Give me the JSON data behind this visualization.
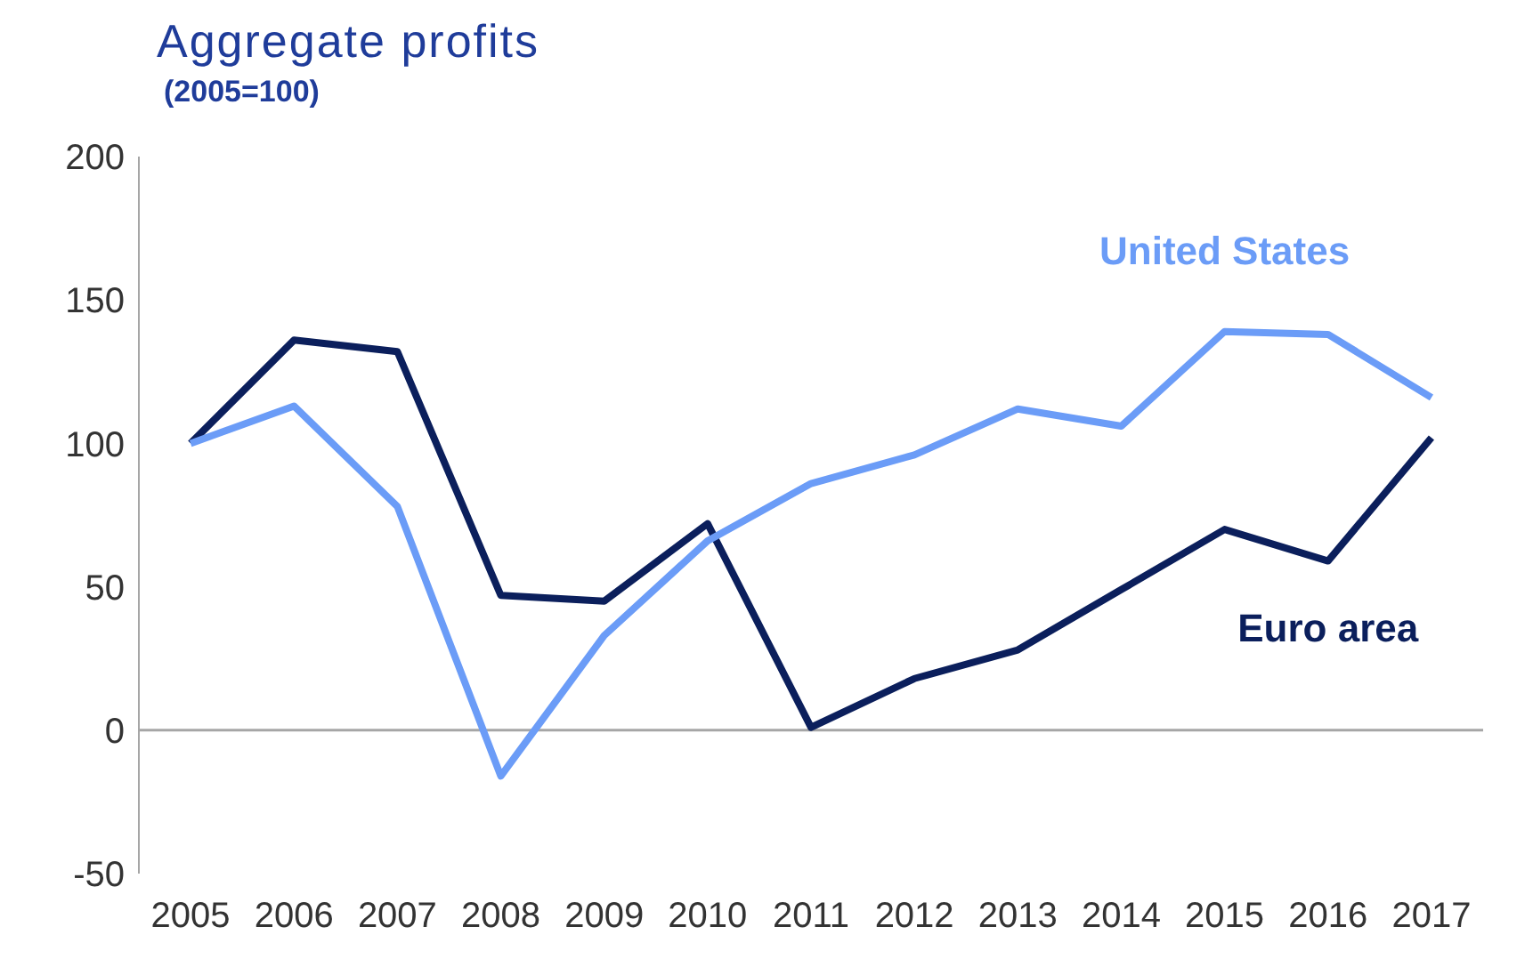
{
  "chart_data": {
    "type": "line",
    "title": "Aggregate profits",
    "subtitle": "(2005=100)",
    "categories": [
      "2005",
      "2006",
      "2007",
      "2008",
      "2009",
      "2010",
      "2011",
      "2012",
      "2013",
      "2014",
      "2015",
      "2016",
      "2017"
    ],
    "series": [
      {
        "name": "Euro area",
        "color": "#0b1f5c",
        "values": [
          100,
          136,
          132,
          47,
          45,
          72,
          1,
          18,
          28,
          49,
          70,
          59,
          102
        ]
      },
      {
        "name": "United States",
        "color": "#6b9cf7",
        "values": [
          100,
          113,
          78,
          -16,
          33,
          66,
          86,
          96,
          112,
          106,
          139,
          138,
          116
        ]
      }
    ],
    "ylim": [
      -50,
      200
    ],
    "yticks": [
      -50,
      0,
      50,
      100,
      150,
      200
    ],
    "grid": false,
    "legend": false,
    "marker": "none",
    "line_style": "solid",
    "ref_lines": [
      {
        "axis": "y",
        "value": 0,
        "color": "#a6a6a6"
      }
    ]
  }
}
